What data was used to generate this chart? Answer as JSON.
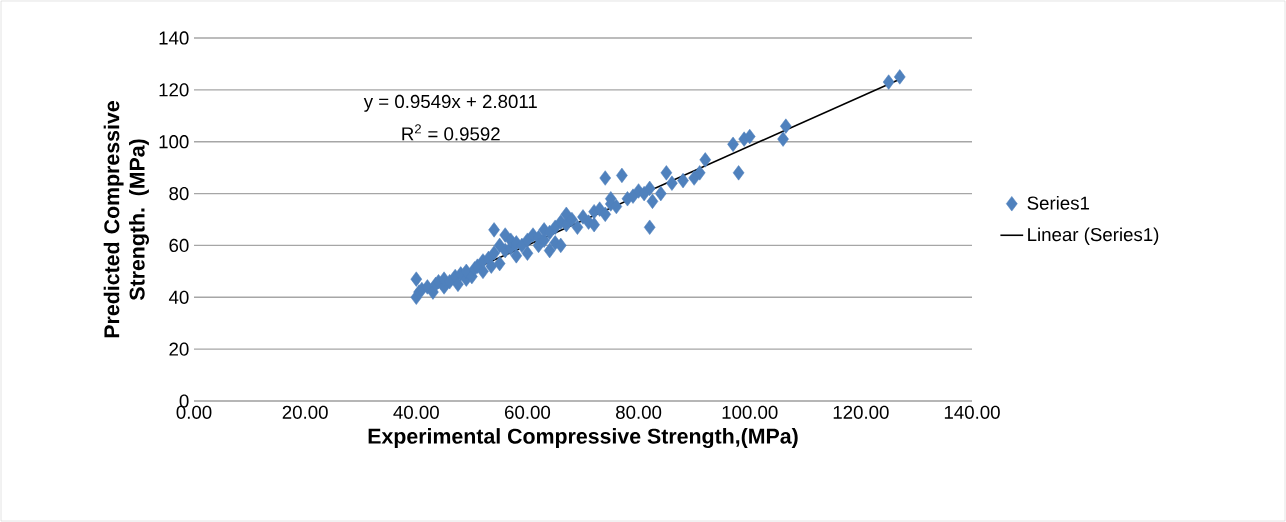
{
  "chart_data": {
    "type": "scatter",
    "xlabel": "Experimental Compressive Strength,(MPa)",
    "ylabel": "Predicted Compressive Strength. (MPa)",
    "annotations": [
      "y = 0.9549x + 2.8011",
      "R$^{2}$ = 0.9592"
    ],
    "xlim": [
      0,
      140
    ],
    "ylim": [
      0,
      140
    ],
    "xticks": [
      {
        "value": 0,
        "label": "0.00"
      },
      {
        "value": 20,
        "label": "20.00"
      },
      {
        "value": 40,
        "label": "40.00"
      },
      {
        "value": 60,
        "label": "60.00"
      },
      {
        "value": 80,
        "label": "80.00"
      },
      {
        "value": 100,
        "label": "100.00"
      },
      {
        "value": 120,
        "label": "120.00"
      },
      {
        "value": 140,
        "label": "140.00"
      }
    ],
    "yticks": [
      0,
      20,
      40,
      60,
      80,
      100,
      120,
      140
    ],
    "grid": "y",
    "legend": "right",
    "marker": "diamond",
    "series": [
      {
        "name": "Series1",
        "color": "#4f81bd",
        "x": [
          40,
          40,
          40.5,
          41,
          42,
          43,
          43.5,
          44,
          45,
          45,
          46,
          47,
          47.5,
          48,
          49,
          49,
          50,
          50.5,
          51,
          52,
          52,
          53,
          53.5,
          54,
          54,
          55,
          55,
          56,
          56,
          57,
          57,
          58,
          58,
          59,
          60,
          60,
          61,
          62,
          62,
          63,
          63,
          64,
          64,
          65,
          65,
          66,
          66,
          67,
          67,
          68,
          69,
          70,
          71,
          72,
          72,
          73,
          74,
          74,
          75,
          75,
          76,
          77,
          78,
          79,
          80,
          81,
          82,
          82,
          82.5,
          84,
          85,
          86,
          88,
          90,
          91,
          92,
          97,
          98,
          99,
          100,
          106,
          106.5,
          125,
          127
        ],
        "values": [
          40,
          47,
          42,
          43,
          44,
          42,
          45,
          46,
          44,
          47,
          46,
          48,
          45,
          49,
          47,
          50,
          48,
          51,
          52,
          50,
          54,
          55,
          52,
          57,
          66,
          53,
          60,
          58,
          64,
          59,
          62,
          56,
          61,
          60,
          57,
          62,
          64,
          63,
          60,
          62,
          66,
          58,
          65,
          67,
          61,
          69,
          60,
          68,
          72,
          70,
          67,
          71,
          69,
          73,
          68,
          74,
          86,
          72,
          76,
          78,
          75,
          87,
          78,
          79,
          81,
          80,
          67,
          82,
          77,
          80,
          88,
          84,
          85,
          86,
          88,
          93,
          99,
          88,
          101,
          102,
          101,
          106,
          123,
          125
        ]
      },
      {
        "name": "Linear (Series1)",
        "type": "line",
        "color": "#000000",
        "marker": "none",
        "x": [
          40,
          127
        ],
        "values": [
          41.0,
          124.1
        ]
      }
    ]
  }
}
